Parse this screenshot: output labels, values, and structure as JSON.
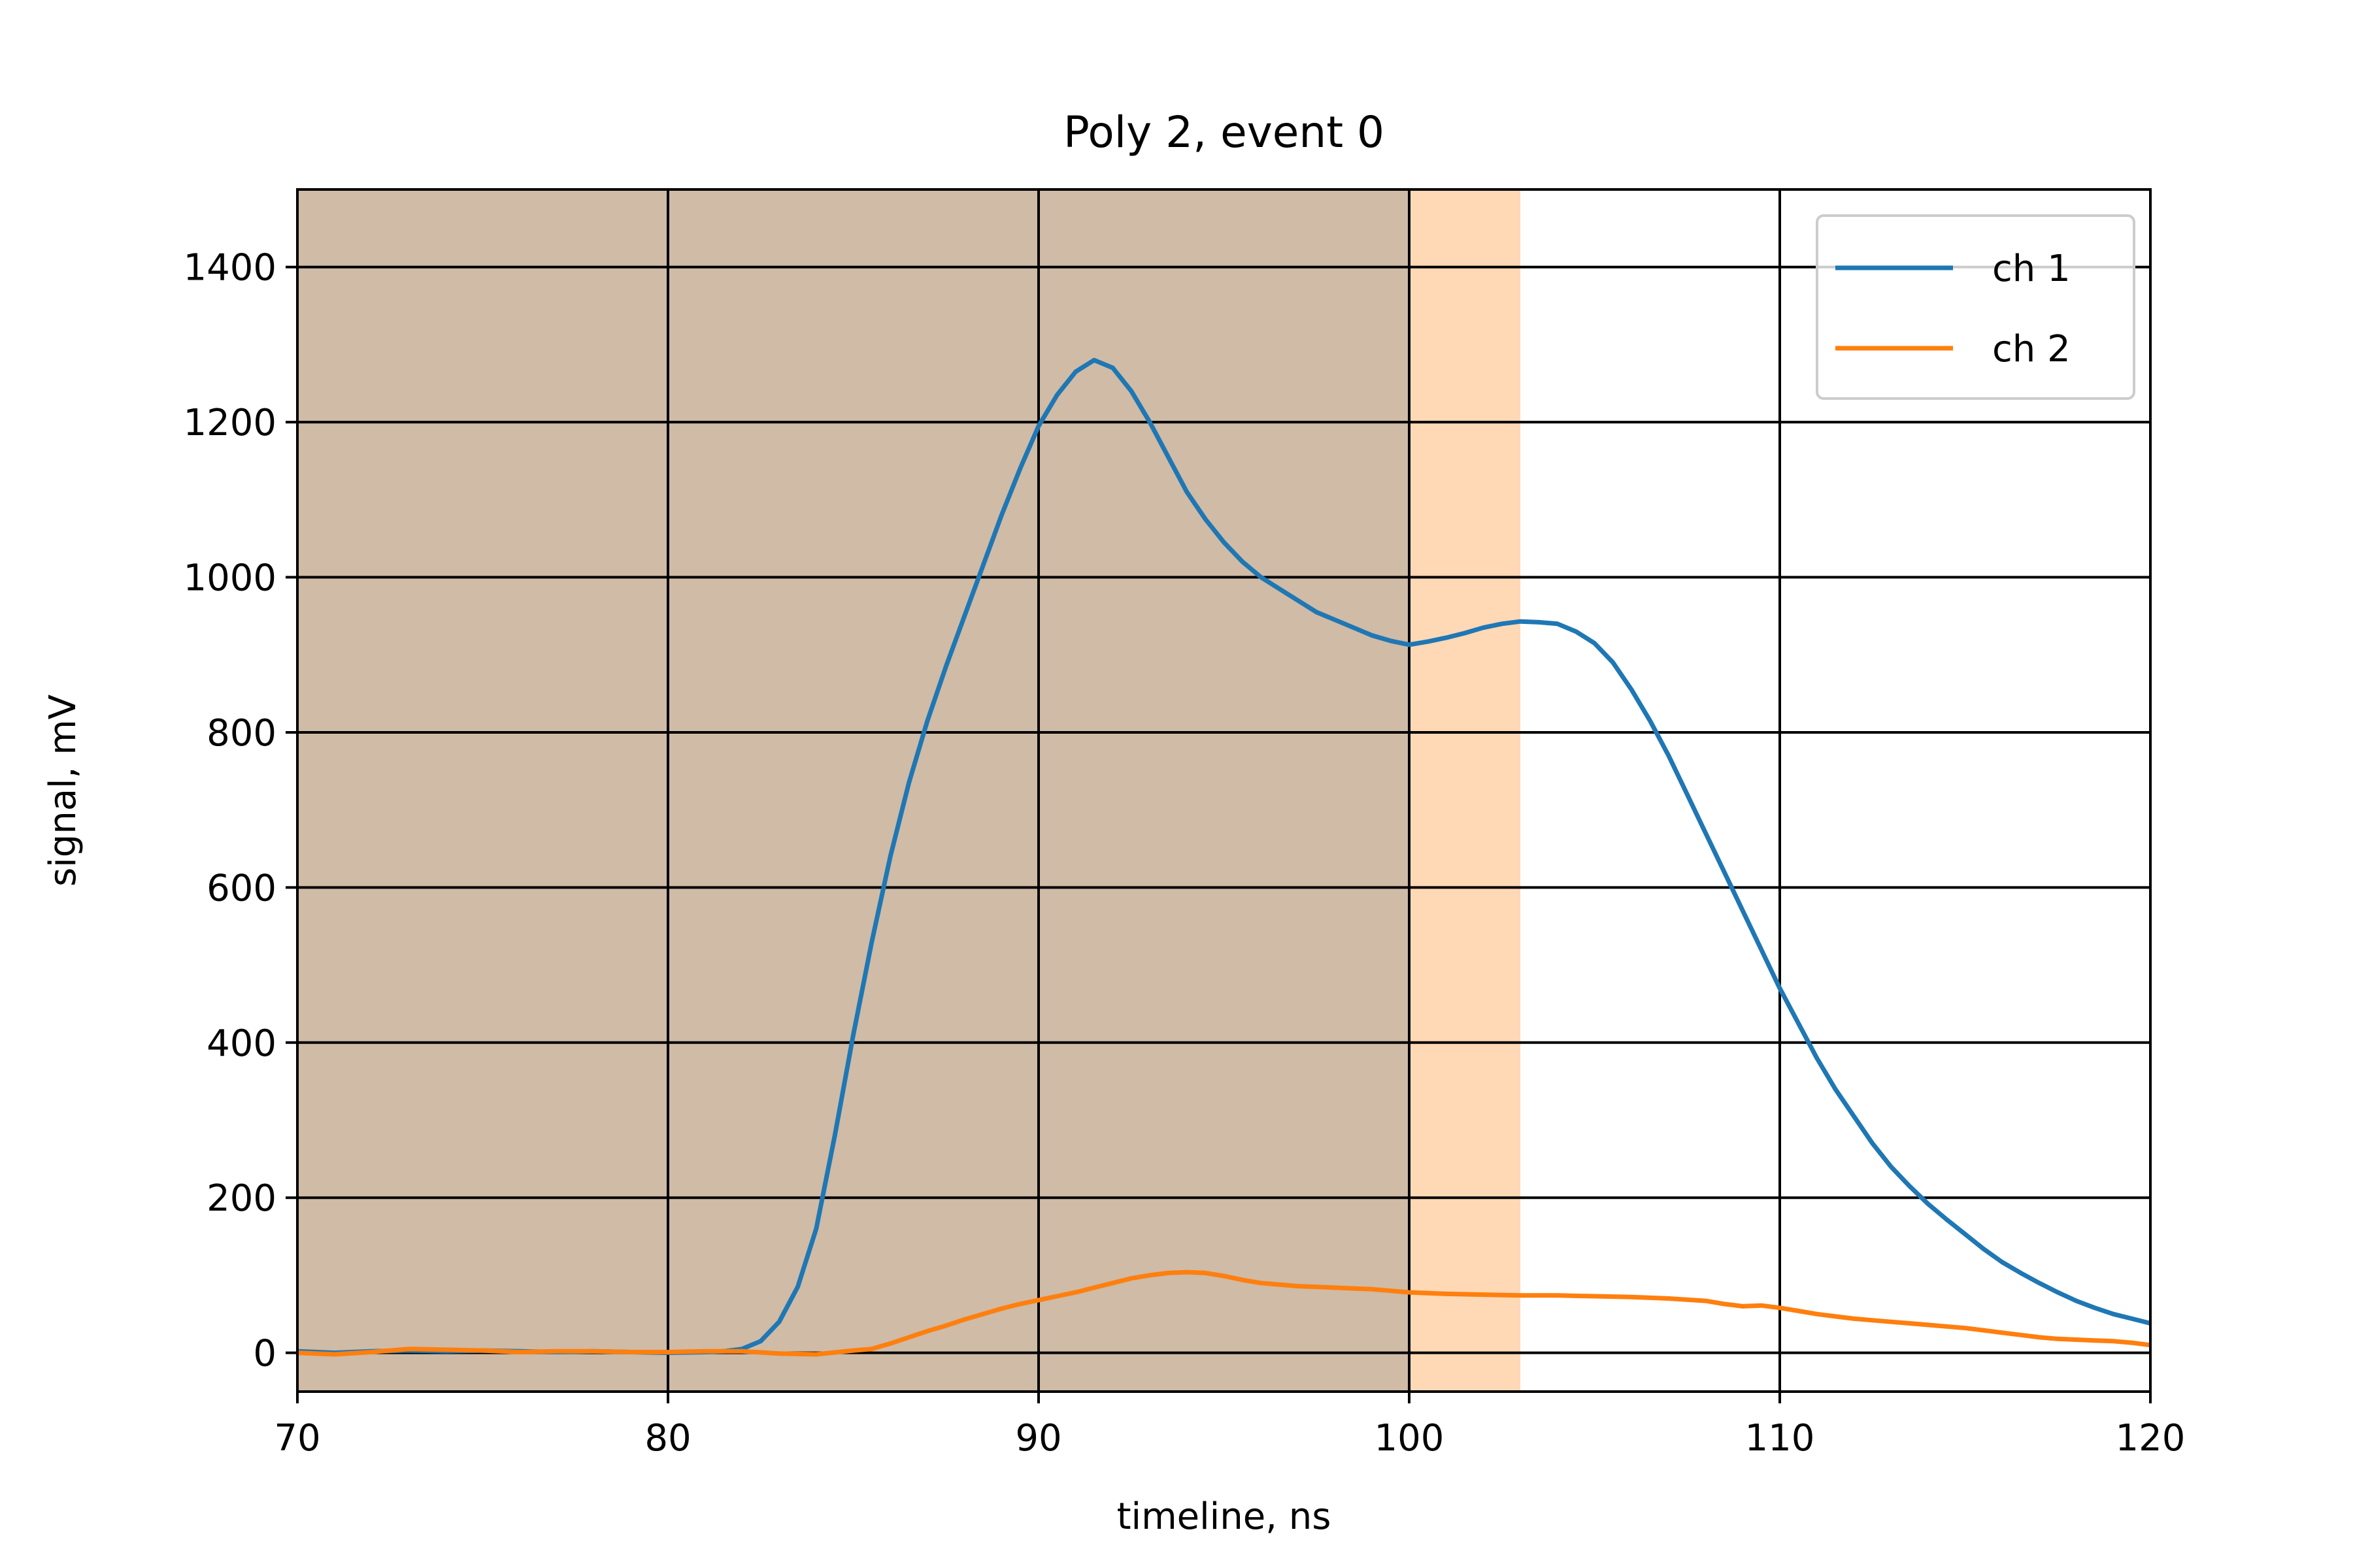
{
  "chart_data": {
    "type": "line",
    "title": "Poly 2, event 0",
    "xlabel": "timeline, ns",
    "ylabel": "signal, mV",
    "xlim": [
      70,
      120
    ],
    "ylim": [
      -50,
      1500
    ],
    "xticks": [
      70,
      80,
      90,
      100,
      110,
      120
    ],
    "yticks": [
      0,
      200,
      400,
      600,
      800,
      1000,
      1200,
      1400
    ],
    "grid": true,
    "legend_position": "top-right",
    "shaded_spans": [
      {
        "x_start": 70,
        "x_end": 100,
        "color": "#1f77b4",
        "opacity": 0.3
      },
      {
        "x_start": 70,
        "x_end": 103,
        "color": "#ff7f0e",
        "opacity": 0.3
      }
    ],
    "series": [
      {
        "name": "ch 1",
        "color": "#1f77b4",
        "points": [
          [
            70,
            2
          ],
          [
            71,
            0
          ],
          [
            72,
            2
          ],
          [
            73,
            3
          ],
          [
            74,
            2
          ],
          [
            75,
            3
          ],
          [
            76,
            2
          ],
          [
            77,
            1
          ],
          [
            78,
            2
          ],
          [
            79,
            1
          ],
          [
            80,
            0
          ],
          [
            81,
            1
          ],
          [
            81.5,
            2
          ],
          [
            82,
            5
          ],
          [
            82.5,
            15
          ],
          [
            83,
            40
          ],
          [
            83.5,
            85
          ],
          [
            84,
            160
          ],
          [
            84.5,
            280
          ],
          [
            85,
            410
          ],
          [
            85.5,
            530
          ],
          [
            86,
            640
          ],
          [
            86.5,
            735
          ],
          [
            87,
            815
          ],
          [
            87.5,
            885
          ],
          [
            88,
            950
          ],
          [
            88.5,
            1015
          ],
          [
            89,
            1080
          ],
          [
            89.5,
            1140
          ],
          [
            90,
            1195
          ],
          [
            90.5,
            1235
          ],
          [
            91,
            1265
          ],
          [
            91.5,
            1280
          ],
          [
            92,
            1270
          ],
          [
            92.5,
            1240
          ],
          [
            93,
            1200
          ],
          [
            93.5,
            1155
          ],
          [
            94,
            1110
          ],
          [
            94.5,
            1075
          ],
          [
            95,
            1045
          ],
          [
            95.5,
            1020
          ],
          [
            96,
            1000
          ],
          [
            96.5,
            985
          ],
          [
            97,
            970
          ],
          [
            97.5,
            955
          ],
          [
            98,
            945
          ],
          [
            98.5,
            935
          ],
          [
            99,
            925
          ],
          [
            99.5,
            918
          ],
          [
            100,
            913
          ],
          [
            100.5,
            917
          ],
          [
            101,
            922
          ],
          [
            101.5,
            928
          ],
          [
            102,
            935
          ],
          [
            102.5,
            940
          ],
          [
            103,
            943
          ],
          [
            103.5,
            942
          ],
          [
            104,
            940
          ],
          [
            104.5,
            930
          ],
          [
            105,
            915
          ],
          [
            105.5,
            890
          ],
          [
            106,
            855
          ],
          [
            106.5,
            815
          ],
          [
            107,
            770
          ],
          [
            107.5,
            720
          ],
          [
            108,
            670
          ],
          [
            108.5,
            620
          ],
          [
            109,
            570
          ],
          [
            109.5,
            520
          ],
          [
            110,
            470
          ],
          [
            110.5,
            425
          ],
          [
            111,
            380
          ],
          [
            111.5,
            340
          ],
          [
            112,
            305
          ],
          [
            112.5,
            270
          ],
          [
            113,
            240
          ],
          [
            113.5,
            215
          ],
          [
            114,
            192
          ],
          [
            114.5,
            172
          ],
          [
            115,
            153
          ],
          [
            115.5,
            134
          ],
          [
            116,
            117
          ],
          [
            116.5,
            103
          ],
          [
            117,
            90
          ],
          [
            117.5,
            78
          ],
          [
            118,
            67
          ],
          [
            118.5,
            58
          ],
          [
            119,
            50
          ],
          [
            119.5,
            44
          ],
          [
            120,
            38
          ]
        ]
      },
      {
        "name": "ch 2",
        "color": "#ff7f0e",
        "points": [
          [
            70,
            0
          ],
          [
            71,
            -2
          ],
          [
            72,
            1
          ],
          [
            73,
            5
          ],
          [
            74,
            4
          ],
          [
            75,
            3
          ],
          [
            76,
            1
          ],
          [
            77,
            2
          ],
          [
            78,
            2
          ],
          [
            79,
            1
          ],
          [
            80,
            1
          ],
          [
            81,
            2
          ],
          [
            82,
            2
          ],
          [
            83,
            -1
          ],
          [
            84,
            -2
          ],
          [
            85,
            3
          ],
          [
            85.5,
            5
          ],
          [
            86,
            12
          ],
          [
            86.5,
            20
          ],
          [
            87,
            28
          ],
          [
            87.5,
            35
          ],
          [
            88,
            43
          ],
          [
            88.5,
            50
          ],
          [
            89,
            57
          ],
          [
            89.5,
            63
          ],
          [
            90,
            68
          ],
          [
            90.5,
            73
          ],
          [
            91,
            78
          ],
          [
            91.5,
            84
          ],
          [
            92,
            90
          ],
          [
            92.5,
            96
          ],
          [
            93,
            100
          ],
          [
            93.5,
            103
          ],
          [
            94,
            104
          ],
          [
            94.5,
            103
          ],
          [
            95,
            99
          ],
          [
            95.5,
            94
          ],
          [
            96,
            90
          ],
          [
            96.5,
            88
          ],
          [
            97,
            86
          ],
          [
            97.5,
            85
          ],
          [
            98,
            84
          ],
          [
            98.5,
            83
          ],
          [
            99,
            82
          ],
          [
            99.5,
            80
          ],
          [
            100,
            78
          ],
          [
            101,
            76
          ],
          [
            102,
            75
          ],
          [
            103,
            74
          ],
          [
            104,
            74
          ],
          [
            105,
            73
          ],
          [
            106,
            72
          ],
          [
            107,
            70
          ],
          [
            108,
            67
          ],
          [
            108.5,
            63
          ],
          [
            109,
            60
          ],
          [
            109.5,
            61
          ],
          [
            110,
            58
          ],
          [
            110.5,
            54
          ],
          [
            111,
            50
          ],
          [
            111.5,
            47
          ],
          [
            112,
            44
          ],
          [
            112.5,
            42
          ],
          [
            113,
            40
          ],
          [
            113.5,
            38
          ],
          [
            114,
            36
          ],
          [
            114.5,
            34
          ],
          [
            115,
            32
          ],
          [
            115.5,
            29
          ],
          [
            116,
            26
          ],
          [
            116.5,
            23
          ],
          [
            117,
            20
          ],
          [
            117.5,
            18
          ],
          [
            118,
            17
          ],
          [
            118.5,
            16
          ],
          [
            119,
            15
          ],
          [
            119.5,
            13
          ],
          [
            120,
            10
          ]
        ]
      }
    ]
  }
}
